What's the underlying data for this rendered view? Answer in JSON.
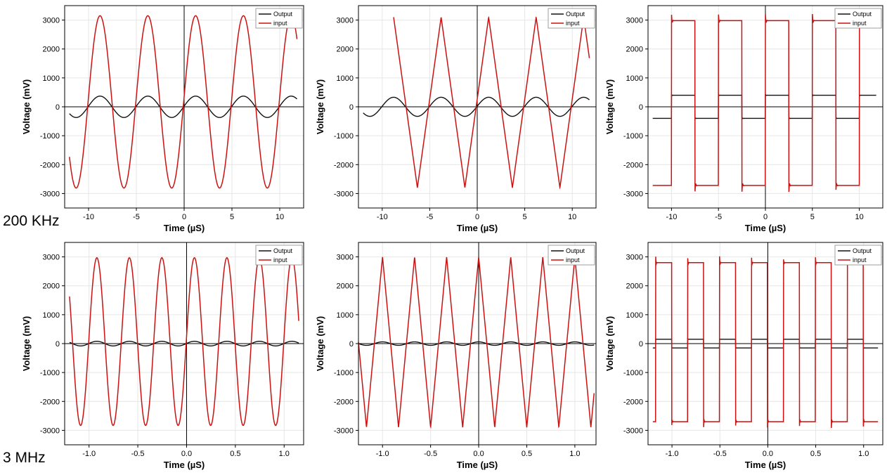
{
  "row_labels": [
    "200 KHz",
    "3 MHz"
  ],
  "legend": {
    "output_label": "Output",
    "input_label": "input"
  },
  "colors": {
    "output": "#111111",
    "input": "#cc1111",
    "grid": "#e6e6e6",
    "axis": "#000000"
  },
  "chart_data": [
    {
      "type": "line",
      "row": 0,
      "col": 0,
      "frequency": "200 KHz",
      "waveform": "sine",
      "xlabel": "Time (µS)",
      "ylabel": "Voltage (mV)",
      "xlim": [
        -12.5,
        12.5
      ],
      "ylim": [
        -3500,
        3500
      ],
      "xticks": [
        -10,
        -5,
        0,
        5,
        10
      ],
      "xtick_labels": [
        "-10",
        "-5",
        "0",
        "5",
        "10"
      ],
      "yticks": [
        -3000,
        -2000,
        -1000,
        0,
        1000,
        2000,
        3000
      ],
      "ytick_labels": [
        "-3000",
        "-2000",
        "-1000",
        "0",
        "1000",
        "2000",
        "3000"
      ],
      "series": [
        {
          "name": "Output",
          "amplitude": 370,
          "offset": 0,
          "period": 5,
          "phase_peak_t": 1.2,
          "t_start": -12,
          "t_end": 11.8
        },
        {
          "name": "input",
          "amplitude": 2980,
          "offset": 170,
          "period": 5,
          "phase_peak_t": 1.2,
          "t_start": -12,
          "t_end": 11.8
        }
      ]
    },
    {
      "type": "line",
      "row": 0,
      "col": 1,
      "frequency": "200 KHz",
      "waveform": "triangle",
      "xlabel": "Time (µS)",
      "ylabel": "Voltage (mV)",
      "xlim": [
        -12.5,
        12.5
      ],
      "ylim": [
        -3500,
        3500
      ],
      "xticks": [
        -10,
        -5,
        0,
        5,
        10
      ],
      "xtick_labels": [
        "-10",
        "-5",
        "0",
        "5",
        "10"
      ],
      "yticks": [
        -3000,
        -2000,
        -1000,
        0,
        1000,
        2000,
        3000
      ],
      "ytick_labels": [
        "-3000",
        "-2000",
        "-1000",
        "0",
        "1000",
        "2000",
        "3000"
      ],
      "series": [
        {
          "name": "Output",
          "amplitude": 330,
          "offset": 0,
          "period": 5,
          "phase_peak_t": 1.2,
          "t_start": -12,
          "t_end": 11.8,
          "shape": "sine"
        },
        {
          "name": "input",
          "amplitude": 2950,
          "offset": 150,
          "period": 5,
          "phase_peak_t": 1.2,
          "t_start": -8.8,
          "t_end": 11.8
        }
      ]
    },
    {
      "type": "line",
      "row": 0,
      "col": 2,
      "frequency": "200 KHz",
      "waveform": "square",
      "xlabel": "Time (µS)",
      "ylabel": "Voltage (mV)",
      "xlim": [
        -12.5,
        12.5
      ],
      "ylim": [
        -3500,
        3500
      ],
      "xticks": [
        -10,
        -5,
        0,
        5,
        10
      ],
      "xtick_labels": [
        "-10",
        "-5",
        "0",
        "5",
        "10"
      ],
      "yticks": [
        -3000,
        -2000,
        -1000,
        0,
        1000,
        2000,
        3000
      ],
      "ytick_labels": [
        "-3000",
        "-2000",
        "-1000",
        "0",
        "1000",
        "2000",
        "3000"
      ],
      "series": [
        {
          "name": "Output",
          "high": 400,
          "low": -400,
          "period": 5,
          "rise_t": -10,
          "t_start": -12,
          "t_end": 11.8
        },
        {
          "name": "input",
          "high": 2980,
          "low": -2720,
          "period": 5,
          "rise_t": -10,
          "t_start": -12,
          "t_end": 11.8
        }
      ]
    },
    {
      "type": "line",
      "row": 1,
      "col": 0,
      "frequency": "3 MHz",
      "waveform": "sine",
      "xlabel": "Time (µS)",
      "ylabel": "Voltage (mV)",
      "xlim": [
        -1.25,
        1.2
      ],
      "ylim": [
        -3500,
        3500
      ],
      "xticks": [
        -1.0,
        -0.5,
        0.0,
        0.5,
        1.0
      ],
      "xtick_labels": [
        "-1.0",
        "-0.5",
        "0.0",
        "0.5",
        "1.0"
      ],
      "yticks": [
        -3000,
        -2000,
        -1000,
        0,
        1000,
        2000,
        3000
      ],
      "ytick_labels": [
        "-3000",
        "-2000",
        "-1000",
        "0",
        "1000",
        "2000",
        "3000"
      ],
      "series": [
        {
          "name": "Output",
          "amplitude": 80,
          "offset": 0,
          "period": 0.3333,
          "phase_peak_t": 0.08,
          "t_start": -1.2,
          "t_end": 1.15
        },
        {
          "name": "input",
          "amplitude": 2900,
          "offset": 70,
          "period": 0.3333,
          "phase_peak_t": 0.08,
          "t_start": -1.2,
          "t_end": 1.15
        }
      ]
    },
    {
      "type": "line",
      "row": 1,
      "col": 1,
      "frequency": "3 MHz",
      "waveform": "triangle",
      "xlabel": "Time (µS)",
      "ylabel": "Voltage (mV)",
      "xlim": [
        -1.25,
        1.22
      ],
      "ylim": [
        -3500,
        3500
      ],
      "xticks": [
        -1.0,
        -0.5,
        0.0,
        0.5,
        1.0
      ],
      "xtick_labels": [
        "-1.0",
        "-0.5",
        "0.0",
        "0.5",
        "1.0"
      ],
      "yticks": [
        -3000,
        -2000,
        -1000,
        0,
        1000,
        2000,
        3000
      ],
      "ytick_labels": [
        "-3000",
        "-2000",
        "-1000",
        "0",
        "1000",
        "2000",
        "3000"
      ],
      "series": [
        {
          "name": "Output",
          "amplitude": 60,
          "offset": 0,
          "period": 0.3333,
          "phase_peak_t": 0.0,
          "t_start": -1.25,
          "t_end": 1.2,
          "shape": "sine"
        },
        {
          "name": "input",
          "amplitude": 2950,
          "offset": 50,
          "period": 0.3333,
          "phase_peak_t": 0.0,
          "t_start": -1.25,
          "t_end": 1.2
        }
      ]
    },
    {
      "type": "line",
      "row": 1,
      "col": 2,
      "frequency": "3 MHz",
      "waveform": "square",
      "xlabel": "Time (µS)",
      "ylabel": "Voltage (mV)",
      "xlim": [
        -1.25,
        1.2
      ],
      "ylim": [
        -3500,
        3500
      ],
      "xticks": [
        -1.0,
        -0.5,
        0.0,
        0.5,
        1.0
      ],
      "xtick_labels": [
        "-1.0",
        "-0.5",
        "0.0",
        "0.5",
        "1.0"
      ],
      "yticks": [
        -3000,
        -2000,
        -1000,
        0,
        1000,
        2000,
        3000
      ],
      "ytick_labels": [
        "-3000",
        "-2000",
        "-1000",
        "0",
        "1000",
        "2000",
        "3000"
      ],
      "series": [
        {
          "name": "Output",
          "high": 150,
          "low": -150,
          "period": 0.3333,
          "rise_t": -1.17,
          "t_start": -1.2,
          "t_end": 1.15
        },
        {
          "name": "input",
          "high": 2800,
          "low": -2700,
          "period": 0.3333,
          "rise_t": -1.17,
          "t_start": -1.2,
          "t_end": 1.15
        }
      ]
    }
  ]
}
